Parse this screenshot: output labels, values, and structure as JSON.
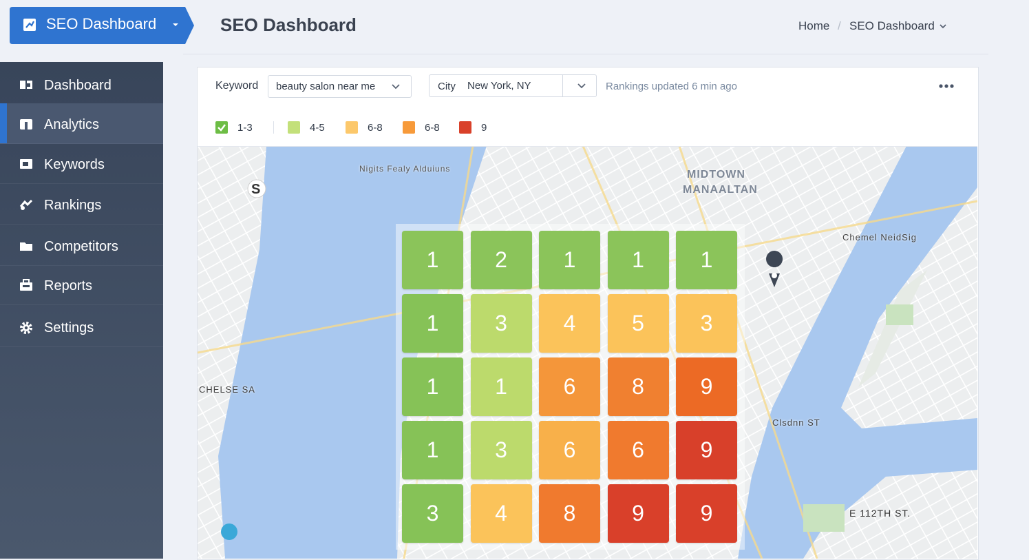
{
  "brand": {
    "title": "SEO Dashboard"
  },
  "header": {
    "title": "SEO Dashboard",
    "breadcrumb": [
      "Home",
      "SEO Dashboard"
    ]
  },
  "sidebar": {
    "items": [
      "Dashboard",
      "Analytics",
      "Keywords",
      "Rankings",
      "Competitors",
      "Reports",
      "Settings"
    ]
  },
  "filters": {
    "keyword_label": "Keyword",
    "keyword": "beauty salon near me",
    "city_label": "City",
    "city": "New York, NY",
    "status": "Rankings updated 6 min ago"
  },
  "legend": [
    {
      "label": "1-3",
      "color": "#6dbd45"
    },
    {
      "label": "4-5",
      "color": "#c3e07a"
    },
    {
      "label": "6-8",
      "color": "#fcc86b"
    },
    {
      "label": "6-8",
      "color": "#f79a3a"
    },
    {
      "label": "9",
      "color": "#d9412a"
    }
  ],
  "map_labels": [
    "MIDTOWN",
    "MANAALTAN",
    "CHELSE SA",
    "E 112TH ST.",
    "Chemel NeidSig",
    "Clsdnn ST",
    "Nigits Fealy Alduiuns",
    "S"
  ],
  "grid": {
    "rows": [
      [
        1,
        2,
        1,
        1,
        1
      ],
      [
        1,
        3,
        4,
        5,
        3
      ],
      [
        1,
        1,
        6,
        8,
        9
      ],
      [
        1,
        3,
        6,
        6,
        9
      ],
      [
        3,
        4,
        8,
        9,
        9
      ]
    ],
    "colors": [
      [
        "#8bc45a",
        "#8bc45a",
        "#8bc45a",
        "#8bc45a",
        "#8bc45a"
      ],
      [
        "#86c257",
        "#bcda6c",
        "#fbc35a",
        "#fbc35a",
        "#fbc35a"
      ],
      [
        "#86c257",
        "#bcda6c",
        "#f4963a",
        "#f08030",
        "#ec6a25"
      ],
      [
        "#86c257",
        "#bcda6c",
        "#f8b04a",
        "#f07a2e",
        "#d8402a"
      ],
      [
        "#86c257",
        "#fbc35a",
        "#f07a2e",
        "#d9402a",
        "#d9402a"
      ]
    ]
  }
}
